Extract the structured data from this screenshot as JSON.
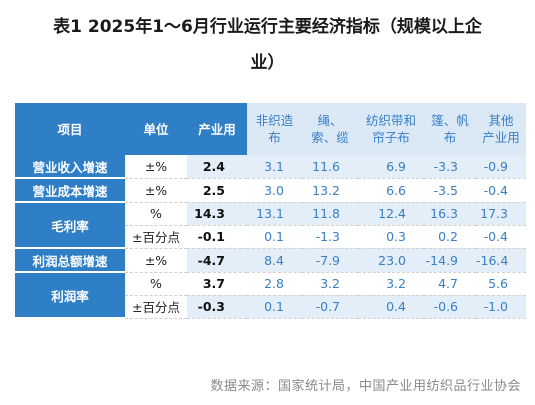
{
  "title": {
    "line1": "表1  2025年1～6月行业运行主要经济指标（规模以上企",
    "line2": "业）"
  },
  "headers": {
    "item": "项目",
    "unit": "单位",
    "industrial": "产业用",
    "sub1_l1": "非织造",
    "sub1_l2": "布",
    "sub2_l1": "绳、",
    "sub2_l2": "索、缆",
    "sub3_l1": "纺织带和",
    "sub3_l2": "帘子布",
    "sub4_l1": "篷、帆",
    "sub4_l2": "布",
    "sub5_l1": "其他",
    "sub5_l2": "产业用"
  },
  "groups": [
    {
      "item": "营业收入增速",
      "rows": [
        [
          "±%",
          "2.4",
          "3.1",
          "11.6",
          "6.9",
          "-3.3",
          "-0.9"
        ]
      ]
    },
    {
      "item": "营业成本增速",
      "rows": [
        [
          "±%",
          "2.5",
          "3.0",
          "13.2",
          "6.6",
          "-3.5",
          "-0.4"
        ]
      ]
    },
    {
      "item": "毛利率",
      "rows": [
        [
          "%",
          "14.3",
          "13.1",
          "11.8",
          "12.4",
          "16.3",
          "17.3"
        ],
        [
          "±百分点",
          "-0.1",
          "0.1",
          "-1.3",
          "0.3",
          "0.2",
          "-0.4"
        ]
      ]
    },
    {
      "item": "利润总额增速",
      "rows": [
        [
          "±%",
          "-4.7",
          "8.4",
          "-7.9",
          "23.0",
          "-14.9",
          "-16.4"
        ]
      ]
    },
    {
      "item": "利润率",
      "rows": [
        [
          "%",
          "3.7",
          "2.8",
          "3.2",
          "3.2",
          "4.7",
          "5.6"
        ],
        [
          "±百分点",
          "-0.3",
          "0.1",
          "-0.7",
          "0.4",
          "-0.6",
          "-1.0"
        ]
      ]
    }
  ],
  "source": "数据来源：国家统计局，中国产业用纺织品行业协会"
}
